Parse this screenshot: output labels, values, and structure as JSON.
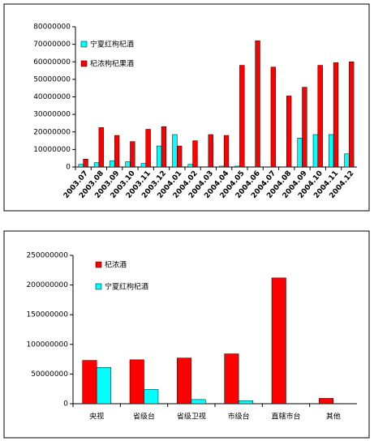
{
  "chart_data": [
    {
      "type": "bar",
      "categories": [
        "2003.07",
        "2003.08",
        "2003.09",
        "2003.10",
        "2003.11",
        "2003.12",
        "2004.01",
        "2004.02",
        "2004.03",
        "2004.04",
        "2004.05",
        "2004.06",
        "2004.07",
        "2004.08",
        "2004.09",
        "2004.10",
        "2004.11",
        "2004.12"
      ],
      "series": [
        {
          "name": "宁夏红枸杞酒",
          "color": "#00ffff",
          "values": [
            1500000,
            2500000,
            3500000,
            3000000,
            2000000,
            12000000,
            18500000,
            1500000,
            0,
            500000,
            500000,
            0,
            0,
            0,
            16500000,
            18500000,
            18500000,
            7500000
          ]
        },
        {
          "name": "杞浓枸杞果酒",
          "color": "#ff0000",
          "values": [
            4500000,
            22500000,
            18000000,
            14500000,
            21500000,
            23000000,
            12000000,
            15000000,
            18500000,
            18000000,
            58000000,
            72000000,
            57000000,
            40500000,
            45500000,
            58000000,
            59500000,
            60000000
          ]
        }
      ],
      "ylim": [
        0,
        80000000
      ],
      "yticks": [
        0,
        10000000,
        20000000,
        30000000,
        40000000,
        50000000,
        60000000,
        70000000,
        80000000
      ]
    },
    {
      "type": "bar",
      "categories": [
        "央视",
        "省级台",
        "省级卫视",
        "市级台",
        "直辖市台",
        "其他"
      ],
      "series": [
        {
          "name": "杞浓酒",
          "color": "#ff0000",
          "values": [
            73000000,
            74000000,
            77000000,
            84000000,
            212000000,
            9000000
          ]
        },
        {
          "name": "宁夏红枸杞酒",
          "color": "#00ffff",
          "values": [
            61000000,
            24000000,
            7000000,
            5000000,
            0,
            0
          ]
        }
      ],
      "ylim": [
        0,
        250000000
      ],
      "yticks": [
        0,
        50000000,
        100000000,
        150000000,
        200000000,
        250000000
      ]
    }
  ]
}
